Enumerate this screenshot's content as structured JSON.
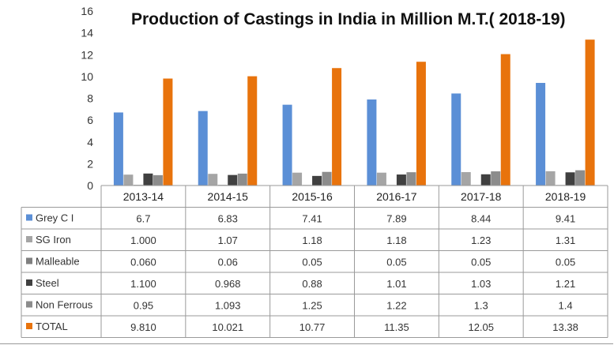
{
  "chart_data": {
    "type": "bar",
    "title": "Production of Castings in India in Million M.T.( 2018-19)",
    "categories": [
      "2013-14",
      "2014-15",
      "2015-16",
      "2016-17",
      "2017-18",
      "2018-19"
    ],
    "ylim": [
      0,
      16
    ],
    "yticks": [
      0,
      2,
      4,
      6,
      8,
      10,
      12,
      14,
      16
    ],
    "grid": false,
    "legend": "data-table",
    "series": [
      {
        "name": "Grey C I",
        "color": "#5B8FD6",
        "values": [
          6.7,
          6.83,
          7.41,
          7.89,
          8.44,
          9.41
        ],
        "labels": [
          "6.7",
          "6.83",
          "7.41",
          "7.89",
          "8.44",
          "9.41"
        ]
      },
      {
        "name": "SG Iron",
        "color": "#A5A5A5",
        "values": [
          1.0,
          1.07,
          1.18,
          1.18,
          1.23,
          1.31
        ],
        "labels": [
          "1.000",
          "1.07",
          "1.18",
          "1.18",
          "1.23",
          "1.31"
        ]
      },
      {
        "name": "Malleable",
        "color": "#7F7F7F",
        "values": [
          0.06,
          0.06,
          0.05,
          0.05,
          0.05,
          0.05
        ],
        "labels": [
          "0.060",
          "0.06",
          "0.05",
          "0.05",
          "0.05",
          "0.05"
        ]
      },
      {
        "name": "Steel",
        "color": "#404040",
        "values": [
          1.1,
          0.968,
          0.88,
          1.01,
          1.03,
          1.21
        ],
        "labels": [
          "1.100",
          "0.968",
          "0.88",
          "1.01",
          "1.03",
          "1.21"
        ]
      },
      {
        "name": "Non Ferrous",
        "color": "#8C8C8C",
        "values": [
          0.95,
          1.093,
          1.25,
          1.22,
          1.3,
          1.4
        ],
        "labels": [
          "0.95",
          "1.093",
          "1.25",
          "1.22",
          "1.3",
          "1.4"
        ]
      },
      {
        "name": "TOTAL",
        "color": "#E8730C",
        "values": [
          9.81,
          10.021,
          10.77,
          11.35,
          12.05,
          13.38
        ],
        "labels": [
          "9.810",
          "10.021",
          "10.77",
          "11.35",
          "12.05",
          "13.38"
        ]
      }
    ]
  }
}
